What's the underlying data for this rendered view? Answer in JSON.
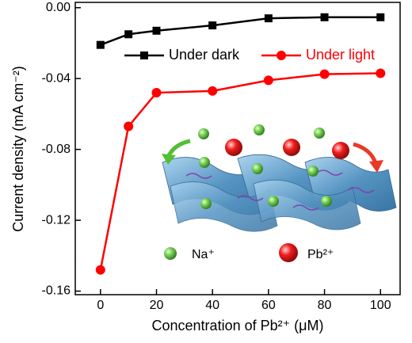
{
  "chart_data": {
    "type": "line",
    "x_label": "Concentration of Pb²⁺ (μM)",
    "y_label": "Current density (mA cm⁻²)",
    "x": [
      0,
      10,
      20,
      40,
      60,
      80,
      100
    ],
    "series": [
      {
        "name": "Under dark",
        "color": "#000000",
        "marker": "square",
        "values": [
          -0.021,
          -0.015,
          -0.013,
          -0.01,
          -0.006,
          -0.0054,
          -0.0054
        ]
      },
      {
        "name": "Under light",
        "color": "#ff0000",
        "marker": "circle",
        "values": [
          -0.148,
          -0.067,
          -0.048,
          -0.047,
          -0.041,
          -0.0375,
          -0.037
        ]
      }
    ],
    "xlim": [
      -9,
      107
    ],
    "xticks": [
      0,
      20,
      40,
      60,
      80,
      100
    ],
    "ylim": [
      -0.162,
      0.003
    ],
    "yticks": [
      {
        "value": 0,
        "label": "0.00"
      },
      {
        "value": -0.04,
        "label": "-0.04"
      },
      {
        "value": -0.08,
        "label": "-0.08"
      },
      {
        "value": -0.12,
        "label": "-0.12"
      },
      {
        "value": -0.16,
        "label": "-0.16"
      }
    ],
    "legend": "top",
    "annotations": [
      "Na⁺",
      "Pb²⁺"
    ]
  }
}
